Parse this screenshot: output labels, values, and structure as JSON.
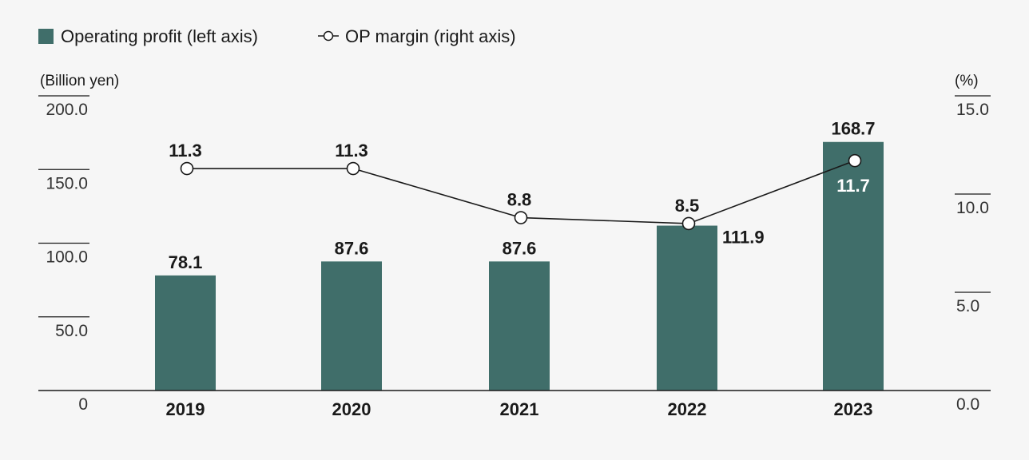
{
  "legend": {
    "bar_label": "Operating profit (left axis)",
    "line_label": "OP margin (right axis)"
  },
  "colors": {
    "bar": "#406e6a",
    "line": "#1a1a1a",
    "marker_fill": "#ffffff",
    "background": "#f6f6f6"
  },
  "chart_data": {
    "type": "bar",
    "title": "",
    "xlabel": "",
    "ylabel": "(Billion yen)",
    "y2label": "(%)",
    "categories": [
      "2019",
      "2020",
      "2021",
      "2022",
      "2023"
    ],
    "ylim": [
      0,
      200
    ],
    "y2lim": [
      0,
      15
    ],
    "y_ticks": [
      "0",
      "50.0",
      "100.0",
      "150.0",
      "200.0"
    ],
    "y2_ticks": [
      "0.0",
      "5.0",
      "10.0",
      "15.0"
    ],
    "series": [
      {
        "name": "Operating profit (left axis)",
        "type": "bar",
        "axis": "left",
        "values": [
          78.1,
          87.6,
          87.6,
          111.9,
          168.7
        ],
        "labels": [
          "78.1",
          "87.6",
          "87.6",
          "111.9",
          "168.7"
        ]
      },
      {
        "name": "OP margin (right axis)",
        "type": "line",
        "axis": "right",
        "values": [
          11.3,
          11.3,
          8.8,
          8.5,
          11.7
        ],
        "labels": [
          "11.3",
          "11.3",
          "8.8",
          "8.5",
          "11.7"
        ]
      }
    ]
  }
}
